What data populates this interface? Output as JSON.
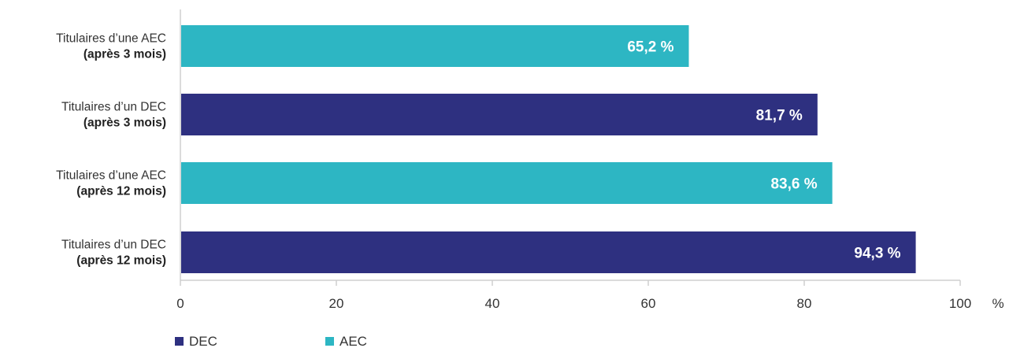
{
  "chart_data": {
    "type": "bar",
    "orientation": "horizontal",
    "categories": [
      {
        "line1": "Titulaires d’une AEC",
        "line2": "(après 3 mois)",
        "group": "AEC"
      },
      {
        "line1": "Titulaires d’un DEC",
        "line2": "(après 3 mois)",
        "group": "DEC"
      },
      {
        "line1": "Titulaires d’une AEC",
        "line2": "(après 12 mois)",
        "group": "AEC"
      },
      {
        "line1": "Titulaires d’un DEC",
        "line2": "(après 12 mois)",
        "group": "DEC"
      }
    ],
    "values": [
      65.2,
      81.7,
      83.6,
      94.3
    ],
    "value_labels": [
      "65,2 %",
      "81,7 %",
      "83,6 %",
      "94,3 %"
    ],
    "xlim": [
      0,
      100
    ],
    "xticks": [
      0,
      20,
      40,
      60,
      80,
      100
    ],
    "x_unit": "%",
    "grid": false,
    "legend_position": "bottom-left",
    "legend": [
      {
        "name": "DEC",
        "color": "#2e3080"
      },
      {
        "name": "AEC",
        "color": "#2db6c3"
      }
    ]
  }
}
